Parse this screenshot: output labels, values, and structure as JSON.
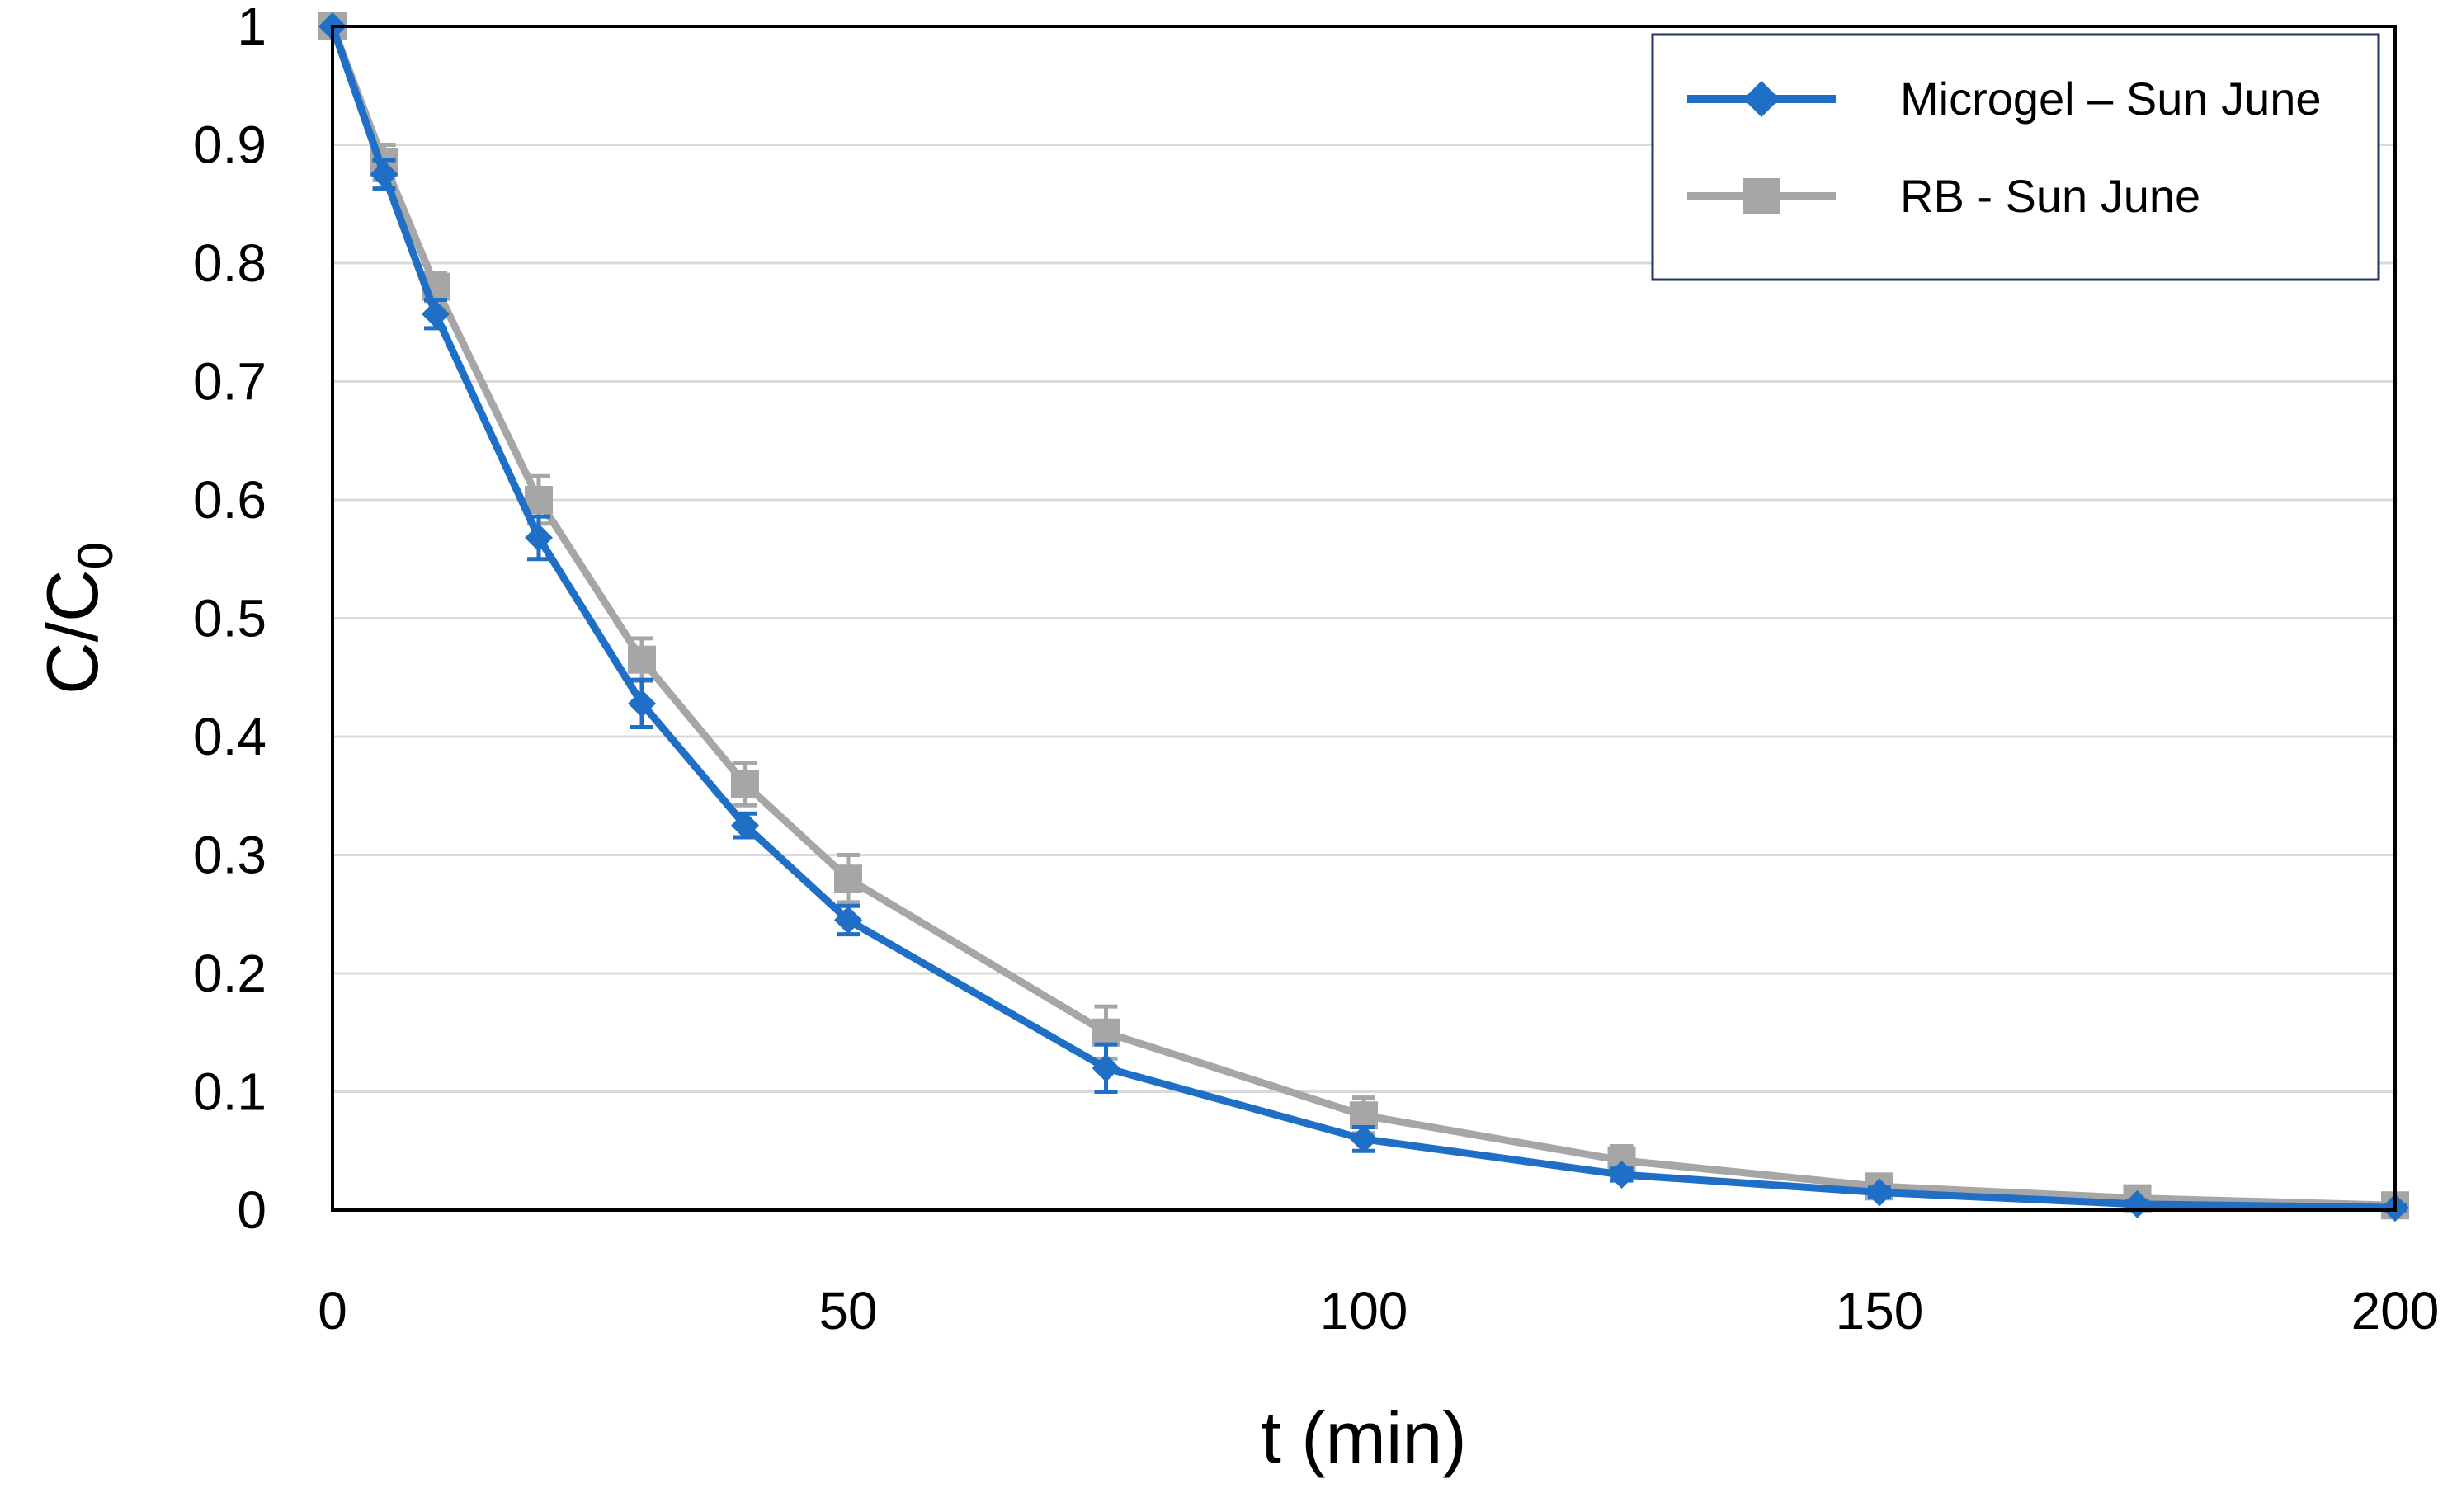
{
  "chart_data": {
    "type": "line",
    "xlabel": "t (min)",
    "ylabel": {
      "main": "C/C",
      "subscript": "0"
    },
    "xlim": [
      0,
      200
    ],
    "ylim": [
      0,
      1
    ],
    "x_ticks": [
      0,
      50,
      100,
      150,
      200
    ],
    "y_ticks": [
      0,
      0.1,
      0.2,
      0.3,
      0.4,
      0.5,
      0.6,
      0.7,
      0.8,
      0.9,
      1
    ],
    "x_tick_labels": [
      "0",
      "50",
      "100",
      "150",
      "200"
    ],
    "y_tick_labels": [
      "0",
      "0.1",
      "0.2",
      "0.3",
      "0.4",
      "0.5",
      "0.6",
      "0.7",
      "0.8",
      "0.9",
      "1"
    ],
    "grid": {
      "horizontal": true,
      "vertical": false
    },
    "legend_position": "top-right",
    "series": [
      {
        "name": "Microgel – Sun June",
        "color": "#1F6FC6",
        "marker": "diamond",
        "x": [
          0,
          5,
          10,
          20,
          30,
          40,
          50,
          75,
          100,
          125,
          150,
          175,
          200
        ],
        "y": [
          1.0,
          0.875,
          0.757,
          0.568,
          0.428,
          0.325,
          0.245,
          0.12,
          0.06,
          0.03,
          0.015,
          0.005,
          0.002
        ],
        "err": [
          0,
          0.012,
          0.012,
          0.018,
          0.02,
          0.01,
          0.012,
          0.02,
          0.01,
          0.005,
          0.004,
          0.003,
          0.002
        ]
      },
      {
        "name": "RB - Sun June",
        "color": "#A6A6A6",
        "marker": "square",
        "x": [
          0,
          5,
          10,
          20,
          30,
          40,
          50,
          75,
          100,
          125,
          150,
          175,
          200
        ],
        "y": [
          1.0,
          0.885,
          0.78,
          0.6,
          0.465,
          0.36,
          0.28,
          0.15,
          0.08,
          0.042,
          0.02,
          0.01,
          0.004
        ],
        "err": [
          0,
          0.015,
          0.012,
          0.02,
          0.018,
          0.018,
          0.02,
          0.022,
          0.015,
          0.012,
          0.005,
          0.004,
          0.002
        ]
      }
    ]
  }
}
